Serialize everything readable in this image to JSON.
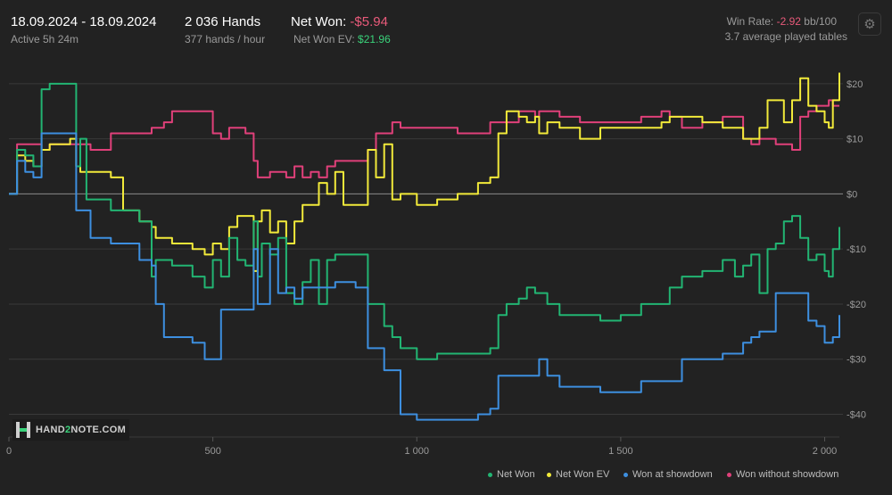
{
  "header": {
    "date_range": "18.09.2024 - 18.09.2024",
    "active": "Active 5h 24m",
    "hands": "2 036 Hands",
    "hands_per_hour": "377 hands / hour",
    "net_won_label": "Net Won:",
    "net_won_value": "-$5.94",
    "net_won_ev_label": "Net Won  EV:",
    "net_won_ev_value": "$21.96",
    "win_rate_label": "Win Rate:",
    "win_rate_value": "-2.92",
    "win_rate_unit": "bb/100",
    "tables": "3.7 average played tables"
  },
  "logo": {
    "prefix": "HAND",
    "digit": "2",
    "suffix": "NOTE.COM"
  },
  "colors": {
    "background": "#222222",
    "net_won": "#22b573",
    "net_won_ev": "#f2ea3a",
    "showdown": "#3d8fe0",
    "non_showdown": "#e0407a"
  },
  "chart_data": {
    "type": "line",
    "title": "",
    "xlabel": "",
    "ylabel": "",
    "xlim": [
      0,
      2036
    ],
    "ylim": [
      -43,
      25
    ],
    "x_ticks": [
      0,
      500,
      1000,
      1500,
      2000
    ],
    "x_tick_labels": [
      "0",
      "500",
      "1 000",
      "1 500",
      "2 000"
    ],
    "y_ticks": [
      20,
      10,
      0,
      -10,
      -20,
      -30,
      -40
    ],
    "y_tick_labels": [
      "$20",
      "$10",
      "$0",
      "-$10",
      "-$20",
      "-$30",
      "-$40"
    ],
    "grid": true,
    "legend_position": "bottom-right",
    "x": [
      0,
      20,
      40,
      60,
      80,
      100,
      130,
      150,
      165,
      175,
      190,
      200,
      220,
      250,
      280,
      320,
      350,
      360,
      380,
      400,
      450,
      480,
      500,
      520,
      540,
      560,
      580,
      600,
      610,
      620,
      640,
      660,
      680,
      700,
      720,
      740,
      760,
      780,
      800,
      820,
      850,
      870,
      880,
      900,
      920,
      940,
      960,
      1000,
      1050,
      1100,
      1150,
      1180,
      1200,
      1220,
      1250,
      1270,
      1290,
      1300,
      1320,
      1350,
      1400,
      1450,
      1500,
      1550,
      1600,
      1620,
      1650,
      1700,
      1750,
      1780,
      1800,
      1820,
      1840,
      1860,
      1880,
      1900,
      1920,
      1940,
      1960,
      1980,
      2000,
      2010,
      2020,
      2036
    ],
    "series": [
      {
        "name": "Net Won",
        "values": [
          0,
          8,
          7,
          5,
          19,
          20,
          20,
          20,
          5,
          10,
          -1,
          -1,
          -1,
          -3,
          -3,
          -5,
          -15,
          -12,
          -12,
          -13,
          -15,
          -17,
          -12,
          -15,
          -8,
          -12,
          -13,
          -5,
          -15,
          -9,
          -11,
          -8,
          -18,
          -20,
          -16,
          -12,
          -20,
          -12,
          -11,
          -11,
          -11,
          -11,
          -20,
          -20,
          -24,
          -26,
          -28,
          -30,
          -29,
          -29,
          -29,
          -28,
          -22,
          -20,
          -19,
          -17,
          -18,
          -18,
          -20,
          -22,
          -22,
          -23,
          -22,
          -20,
          -20,
          -17,
          -15,
          -14,
          -12,
          -15,
          -13,
          -11,
          -18,
          -10,
          -9,
          -5,
          -4,
          -8,
          -12,
          -11,
          -14,
          -15,
          -10,
          -6
        ]
      },
      {
        "name": "Net Won  EV",
        "values": [
          0,
          7,
          6,
          5,
          8,
          9,
          9,
          10,
          5,
          4,
          4,
          4,
          4,
          3,
          -3,
          -5,
          -6,
          -8,
          -8,
          -9,
          -10,
          -11,
          -9,
          -10,
          -6,
          -4,
          -4,
          -14,
          -5,
          -3,
          -7,
          -5,
          -9,
          -5,
          -2,
          -2,
          2,
          0,
          4,
          -2,
          -2,
          -2,
          8,
          3,
          9,
          -1,
          0,
          -2,
          -1,
          0,
          2,
          3,
          11,
          15,
          14,
          13,
          14,
          11,
          13,
          12,
          10,
          12,
          12,
          12,
          13,
          14,
          14,
          13,
          12,
          12,
          10,
          10,
          12,
          17,
          17,
          13,
          17,
          21,
          16,
          15,
          13,
          12,
          17,
          22
        ]
      },
      {
        "name": "Won at showdown",
        "values": [
          0,
          6,
          4,
          3,
          11,
          11,
          11,
          11,
          -3,
          -3,
          -3,
          -8,
          -8,
          -9,
          -9,
          -12,
          -13,
          -20,
          -26,
          -26,
          -27,
          -30,
          -30,
          -21,
          -21,
          -21,
          -21,
          -10,
          -20,
          -20,
          -10,
          -18,
          -17,
          -19,
          -17,
          -17,
          -17,
          -17,
          -16,
          -16,
          -17,
          -17,
          -28,
          -28,
          -32,
          -32,
          -40,
          -41,
          -41,
          -41,
          -40,
          -39,
          -33,
          -33,
          -33,
          -33,
          -33,
          -30,
          -33,
          -35,
          -35,
          -36,
          -36,
          -34,
          -34,
          -34,
          -30,
          -30,
          -29,
          -29,
          -27,
          -26,
          -25,
          -25,
          -18,
          -18,
          -18,
          -18,
          -23,
          -24,
          -27,
          -27,
          -26,
          -22
        ]
      },
      {
        "name": "Won without showdown",
        "values": [
          0,
          9,
          9,
          9,
          8,
          9,
          9,
          9,
          9,
          9,
          9,
          8,
          8,
          11,
          11,
          11,
          12,
          12,
          13,
          15,
          15,
          15,
          11,
          10,
          12,
          12,
          11,
          6,
          3,
          3,
          4,
          4,
          3,
          5,
          3,
          4,
          3,
          5,
          6,
          6,
          6,
          6,
          8,
          11,
          11,
          13,
          12,
          12,
          12,
          11,
          11,
          13,
          13,
          13,
          15,
          15,
          14,
          15,
          15,
          14,
          13,
          13,
          13,
          14,
          15,
          14,
          12,
          13,
          14,
          14,
          10,
          9,
          10,
          10,
          9,
          9,
          8,
          14,
          15,
          16,
          16,
          17,
          16,
          16
        ]
      }
    ]
  }
}
